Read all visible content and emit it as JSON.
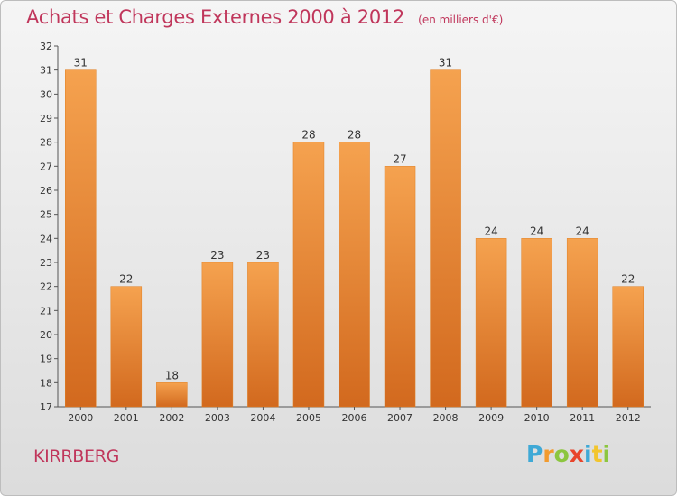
{
  "chart_data": {
    "type": "bar",
    "title": "Achats et Charges Externes 2000 à 2012",
    "subtitle": "(en milliers d'€)",
    "categories": [
      "2000",
      "2001",
      "2002",
      "2003",
      "2004",
      "2005",
      "2006",
      "2007",
      "2008",
      "2009",
      "2010",
      "2011",
      "2012"
    ],
    "values": [
      31,
      22,
      18,
      23,
      23,
      28,
      28,
      27,
      31,
      24,
      24,
      24,
      22
    ],
    "ylim": [
      17,
      32
    ],
    "yticks": [
      17,
      18,
      19,
      20,
      21,
      22,
      23,
      24,
      25,
      26,
      27,
      28,
      29,
      30,
      31,
      32
    ],
    "xlabel": "",
    "ylabel": "",
    "grid": false,
    "legend": "none"
  },
  "place_name": "KIRRBERG",
  "logo": {
    "letters": [
      "P",
      "r",
      "o",
      "x",
      "i",
      "t",
      "i"
    ],
    "colors": [
      "#3fa9d6",
      "#f29b2e",
      "#8cc63f",
      "#e8452c",
      "#3fa9d6",
      "#f2c52e",
      "#8cc63f"
    ]
  },
  "colors": {
    "title": "#c0365b",
    "bar_light": "#f5a24f",
    "bar_dark": "#d2691e",
    "axis": "#555555"
  }
}
